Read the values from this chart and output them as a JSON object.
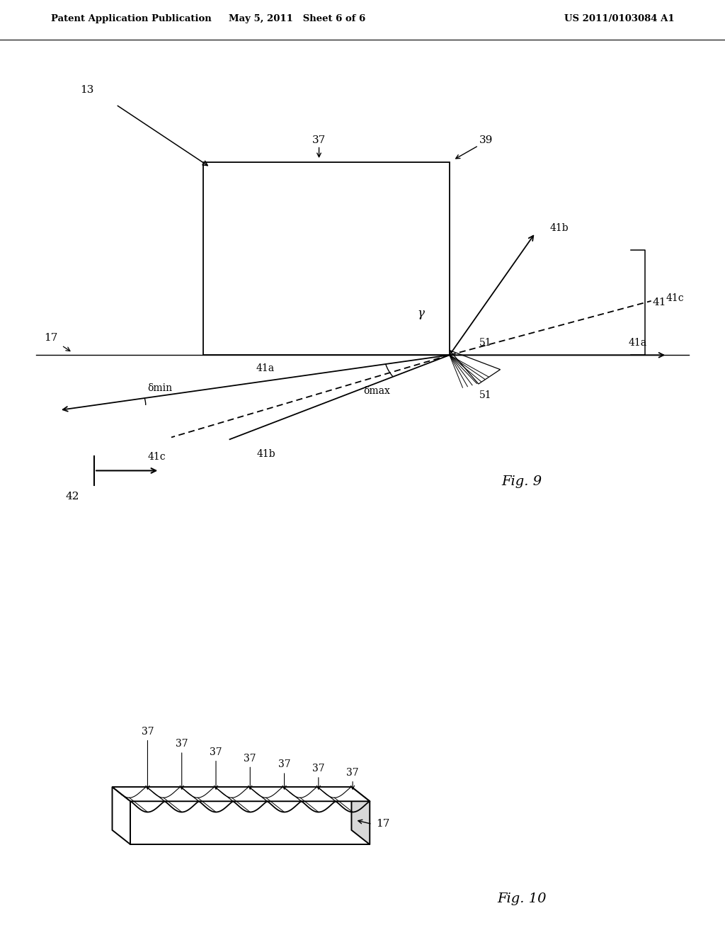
{
  "bg_color": "#ffffff",
  "header_left": "Patent Application Publication",
  "header_mid": "May 5, 2011   Sheet 6 of 6",
  "header_right": "US 2011/0103084 A1",
  "fig9_label": "Fig. 9",
  "fig10_label": "Fig. 10",
  "label_13": "13",
  "label_17": "17",
  "label_37": "37",
  "label_39": "39",
  "label_41": "41",
  "label_41a_left": "41a",
  "label_41a_right": "41a",
  "label_41b_top": "41b",
  "label_41b_bot": "41b",
  "label_41c_top": "41c",
  "label_41c_bot": "41c",
  "label_42": "42",
  "label_51_top": "51",
  "label_51_bot": "51",
  "label_delta_min": "δmin",
  "label_delta_max": "δmax",
  "label_gamma": "γ"
}
